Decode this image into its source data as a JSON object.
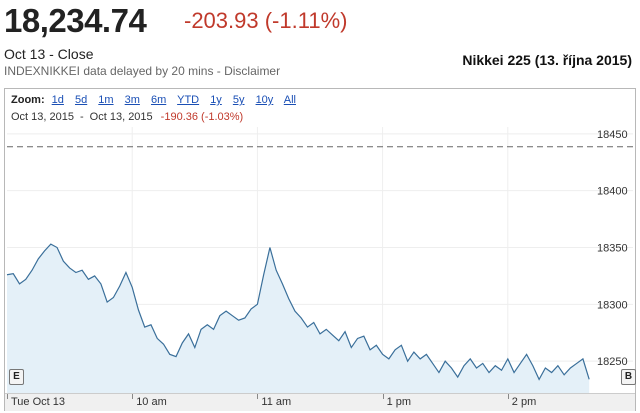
{
  "quote": {
    "price": "18,234.74",
    "change": "-203.93 (-1.11%)",
    "close_label": "Oct 13 - Close",
    "delayed_note": "INDEXNIKKEI data delayed by 20 mins - Disclaimer"
  },
  "caption": "Nikkei 225 (13. října 2015)",
  "chart": {
    "zoom_label": "Zoom:",
    "zoom_options": [
      "1d",
      "5d",
      "1m",
      "3m",
      "6m",
      "YTD",
      "1y",
      "5y",
      "10y",
      "All"
    ],
    "range_start": "Oct 13, 2015",
    "range_sep": "-",
    "range_end": "Oct 13, 2015",
    "range_change": "-190.36 (-1.03%)",
    "badge_left": "E",
    "badge_right": "B"
  },
  "chart_data": {
    "type": "area",
    "ylim": [
      18222,
      18456
    ],
    "y_ticks": [
      "18450",
      "18400",
      "18350",
      "18300",
      "18250"
    ],
    "y_tick_values": [
      18450,
      18400,
      18350,
      18300,
      18250
    ],
    "prev_close": 18438.67,
    "x_tick_labels": [
      "Tue Oct 13",
      "10 am",
      "11 am",
      "1 pm",
      "2 pm"
    ],
    "x_tick_minutes": [
      0,
      60,
      120,
      180,
      240
    ],
    "colors": {
      "line": "#3a6f9a",
      "fill": "#e4f0f8",
      "prev_close": "#666666"
    },
    "points": [
      [
        0,
        18326
      ],
      [
        3,
        18327
      ],
      [
        6,
        18318
      ],
      [
        9,
        18322
      ],
      [
        12,
        18330
      ],
      [
        15,
        18340
      ],
      [
        18,
        18347
      ],
      [
        21,
        18353
      ],
      [
        24,
        18350
      ],
      [
        27,
        18338
      ],
      [
        30,
        18332
      ],
      [
        33,
        18328
      ],
      [
        36,
        18330
      ],
      [
        39,
        18322
      ],
      [
        42,
        18325
      ],
      [
        45,
        18318
      ],
      [
        48,
        18302
      ],
      [
        51,
        18306
      ],
      [
        54,
        18316
      ],
      [
        57,
        18328
      ],
      [
        60,
        18315
      ],
      [
        63,
        18295
      ],
      [
        66,
        18280
      ],
      [
        69,
        18282
      ],
      [
        72,
        18270
      ],
      [
        75,
        18265
      ],
      [
        78,
        18256
      ],
      [
        81,
        18254
      ],
      [
        84,
        18266
      ],
      [
        87,
        18274
      ],
      [
        90,
        18262
      ],
      [
        93,
        18278
      ],
      [
        96,
        18282
      ],
      [
        99,
        18278
      ],
      [
        102,
        18290
      ],
      [
        105,
        18294
      ],
      [
        108,
        18290
      ],
      [
        111,
        18286
      ],
      [
        114,
        18288
      ],
      [
        117,
        18296
      ],
      [
        120,
        18300
      ],
      [
        123,
        18326
      ],
      [
        126,
        18350
      ],
      [
        129,
        18330
      ],
      [
        132,
        18318
      ],
      [
        135,
        18305
      ],
      [
        138,
        18294
      ],
      [
        141,
        18288
      ],
      [
        144,
        18280
      ],
      [
        147,
        18284
      ],
      [
        150,
        18274
      ],
      [
        153,
        18278
      ],
      [
        156,
        18273
      ],
      [
        159,
        18268
      ],
      [
        162,
        18276
      ],
      [
        165,
        18262
      ],
      [
        168,
        18270
      ],
      [
        171,
        18272
      ],
      [
        174,
        18260
      ],
      [
        177,
        18264
      ],
      [
        180,
        18256
      ],
      [
        183,
        18252
      ],
      [
        186,
        18260
      ],
      [
        189,
        18264
      ],
      [
        192,
        18250
      ],
      [
        195,
        18258
      ],
      [
        198,
        18252
      ],
      [
        201,
        18256
      ],
      [
        204,
        18248
      ],
      [
        207,
        18240
      ],
      [
        210,
        18250
      ],
      [
        213,
        18244
      ],
      [
        216,
        18236
      ],
      [
        219,
        18246
      ],
      [
        222,
        18252
      ],
      [
        225,
        18244
      ],
      [
        228,
        18248
      ],
      [
        231,
        18240
      ],
      [
        234,
        18246
      ],
      [
        237,
        18242
      ],
      [
        240,
        18252
      ],
      [
        243,
        18240
      ],
      [
        246,
        18248
      ],
      [
        249,
        18256
      ],
      [
        252,
        18246
      ],
      [
        255,
        18234
      ],
      [
        258,
        18244
      ],
      [
        261,
        18240
      ],
      [
        264,
        18246
      ],
      [
        267,
        18238
      ],
      [
        270,
        18244
      ],
      [
        273,
        18248
      ],
      [
        276,
        18252
      ],
      [
        279,
        18234
      ]
    ]
  }
}
